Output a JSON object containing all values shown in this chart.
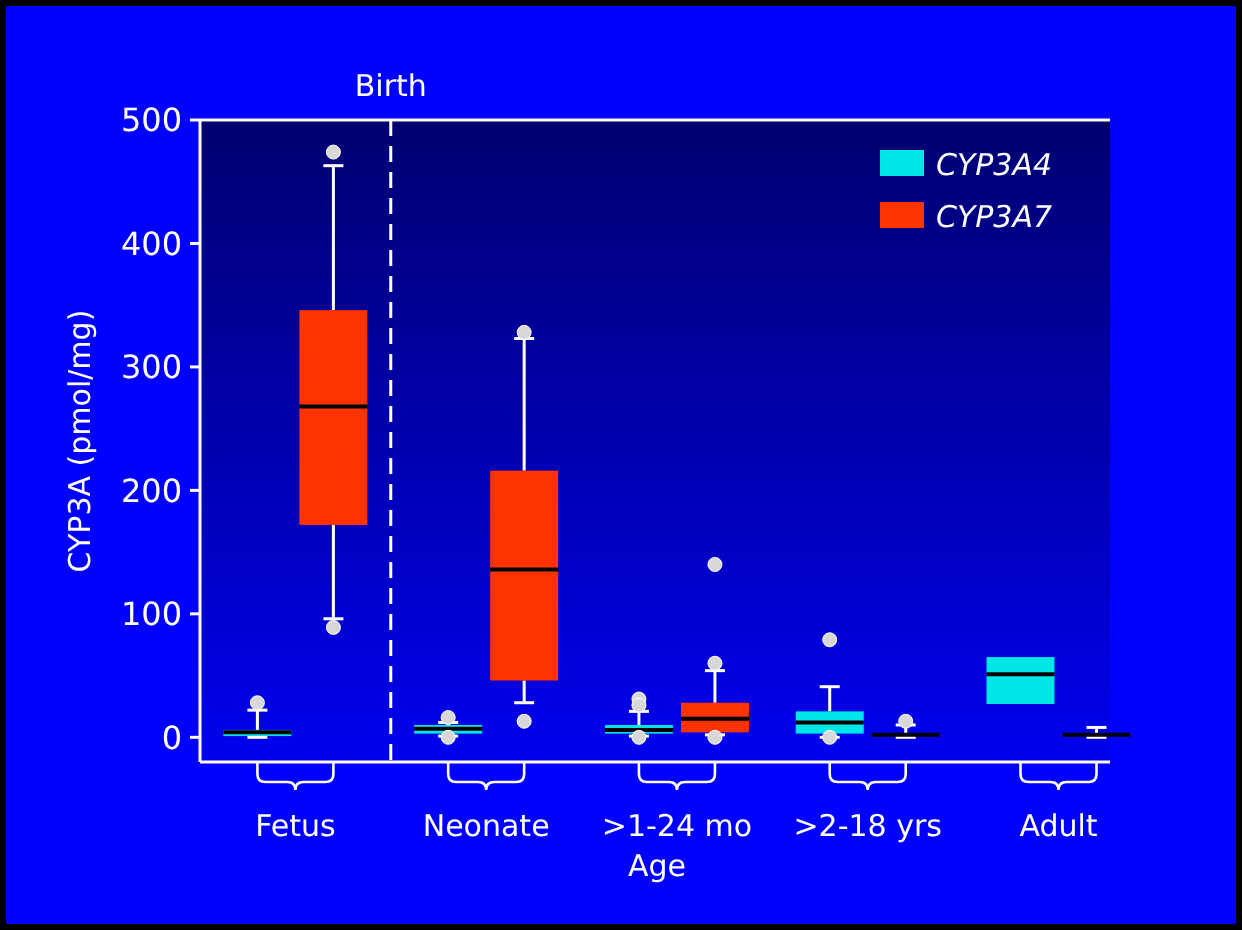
{
  "chart_data": {
    "type": "box",
    "xlabel": "Age",
    "ylabel": "CYP3A (pmol/mg)",
    "categories": [
      "Fetus",
      "Neonate",
      ">1-24 mo",
      ">2-18 yrs",
      "Adult"
    ],
    "series": [
      {
        "name": "CYP3A4",
        "color": "#00e5e5",
        "boxes": [
          {
            "low": 0,
            "q1": 1,
            "median": 4,
            "q3": 6,
            "high": 22,
            "outliers": [
              28
            ]
          },
          {
            "low": 1,
            "q1": 3,
            "median": 7,
            "q3": 10,
            "high": 12,
            "outliers": [
              16,
              0
            ]
          },
          {
            "low": 1,
            "q1": 3,
            "median": 6,
            "q3": 10,
            "high": 21,
            "outliers": [
              31,
              26,
              0
            ]
          },
          {
            "low": 0,
            "q1": 3,
            "median": 12,
            "q3": 21,
            "high": 41,
            "outliers": [
              79,
              0
            ]
          },
          {
            "low": 27,
            "q1": 27,
            "median": 51,
            "q3": 65,
            "high": 65
          }
        ]
      },
      {
        "name": "CYP3A7",
        "color": "#ff3300",
        "boxes": [
          {
            "low": 96,
            "q1": 172,
            "median": 268,
            "q3": 346,
            "high": 463,
            "outliers": [
              474,
              89
            ]
          },
          {
            "low": 28,
            "q1": 46,
            "median": 136,
            "q3": 216,
            "high": 323,
            "outliers": [
              328,
              13
            ]
          },
          {
            "low": 2,
            "q1": 4,
            "median": 15,
            "q3": 28,
            "high": 54,
            "outliers": [
              140,
              60,
              0
            ]
          },
          {
            "low": 0,
            "q1": 1,
            "median": 2,
            "q3": 3,
            "high": 10,
            "outliers": [
              13
            ]
          },
          {
            "low": 0,
            "q1": 1,
            "median": 2,
            "q3": 3,
            "high": 8
          }
        ]
      }
    ],
    "ylim": [
      -20,
      500
    ],
    "yticks": [
      0,
      100,
      200,
      300,
      400,
      500
    ],
    "annotations": [
      "Birth"
    ],
    "legend": "top right"
  }
}
